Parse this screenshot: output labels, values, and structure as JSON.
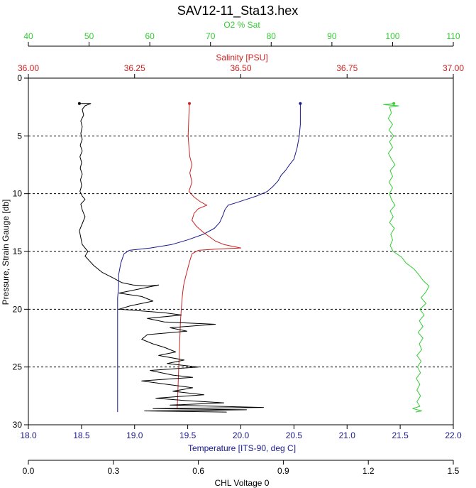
{
  "chart_data": {
    "type": "line",
    "title": "SAV12-11_Sta13.hex",
    "grid": "horizontal dashed",
    "axes": {
      "o2": {
        "label": "O2 % Sat",
        "color": "#33cc33",
        "range": [
          40,
          110
        ],
        "ticks": [
          "40",
          "50",
          "60",
          "70",
          "80",
          "90",
          "100",
          "110"
        ],
        "position": "top"
      },
      "salinity": {
        "label": "Salinity [PSU]",
        "color": "#cc2222",
        "range": [
          36.0,
          37.0
        ],
        "ticks": [
          "36.00",
          "36.25",
          "36.50",
          "36.75",
          "37.00"
        ],
        "position": "top"
      },
      "pressure": {
        "label": "Pressure, Strain Gauge [db]",
        "color": "#000000",
        "range": [
          0,
          30
        ],
        "ticks": [
          "0",
          "5",
          "10",
          "15",
          "20",
          "25",
          "30"
        ],
        "position": "left"
      },
      "temperature": {
        "label": "Temperature [ITS-90, deg C]",
        "color": "#1a1a8c",
        "range": [
          18.0,
          22.0
        ],
        "ticks": [
          "18.0",
          "18.5",
          "19.0",
          "19.5",
          "20.0",
          "20.5",
          "21.0",
          "21.5",
          "22.0"
        ],
        "position": "bottom"
      },
      "chl": {
        "label": "CHL Voltage 0",
        "color": "#000000",
        "range": [
          0.0,
          1.5
        ],
        "ticks": [
          "0.0",
          "0.3",
          "0.6",
          "0.9",
          "1.2",
          "1.5"
        ],
        "position": "bottom"
      }
    },
    "series": [
      {
        "axis": "temperature",
        "color": "#1a1a8c",
        "points": [
          [
            20.56,
            2.2
          ],
          [
            20.56,
            3
          ],
          [
            20.56,
            4
          ],
          [
            20.55,
            5
          ],
          [
            20.53,
            6
          ],
          [
            20.5,
            7
          ],
          [
            20.45,
            7.6
          ],
          [
            20.42,
            8
          ],
          [
            20.38,
            8.4
          ],
          [
            20.35,
            8.9
          ],
          [
            20.3,
            9.4
          ],
          [
            20.25,
            9.8
          ],
          [
            20.15,
            10.2
          ],
          [
            20.05,
            10.5
          ],
          [
            19.95,
            10.8
          ],
          [
            19.88,
            11.0
          ],
          [
            19.85,
            11.4
          ],
          [
            19.83,
            11.9
          ],
          [
            19.8,
            12.5
          ],
          [
            19.75,
            13.0
          ],
          [
            19.65,
            13.5
          ],
          [
            19.5,
            14.0
          ],
          [
            19.35,
            14.4
          ],
          [
            19.15,
            14.7
          ],
          [
            18.95,
            14.9
          ],
          [
            18.9,
            15.2
          ],
          [
            18.87,
            16.0
          ],
          [
            18.85,
            17.0
          ],
          [
            18.85,
            18.0
          ],
          [
            18.84,
            19.0
          ],
          [
            18.84,
            20.0
          ],
          [
            18.84,
            21.0
          ],
          [
            18.84,
            22.0
          ],
          [
            18.84,
            23.0
          ],
          [
            18.84,
            24.0
          ],
          [
            18.84,
            25.0
          ],
          [
            18.84,
            26.0
          ],
          [
            18.84,
            27.0
          ],
          [
            18.84,
            28.0
          ],
          [
            18.84,
            28.9
          ]
        ]
      },
      {
        "axis": "salinity",
        "color": "#cc2222",
        "points": [
          [
            36.379,
            2.2
          ],
          [
            36.378,
            3
          ],
          [
            36.377,
            4
          ],
          [
            36.376,
            5
          ],
          [
            36.378,
            6
          ],
          [
            36.38,
            6.8
          ],
          [
            36.385,
            7.5
          ],
          [
            36.38,
            8.2
          ],
          [
            36.385,
            9
          ],
          [
            36.378,
            9.8
          ],
          [
            36.39,
            10.3
          ],
          [
            36.405,
            10.7
          ],
          [
            36.42,
            11.0
          ],
          [
            36.4,
            11.3
          ],
          [
            36.39,
            11.7
          ],
          [
            36.385,
            12.3
          ],
          [
            36.395,
            12.8
          ],
          [
            36.41,
            13.3
          ],
          [
            36.425,
            13.7
          ],
          [
            36.44,
            14.1
          ],
          [
            36.46,
            14.4
          ],
          [
            36.5,
            14.7
          ],
          [
            36.44,
            14.8
          ],
          [
            36.4,
            14.9
          ],
          [
            36.385,
            15.2
          ],
          [
            36.38,
            15.8
          ],
          [
            36.375,
            16.5
          ],
          [
            36.37,
            17.2
          ],
          [
            36.365,
            18.0
          ],
          [
            36.362,
            19.0
          ],
          [
            36.36,
            20.0
          ],
          [
            36.358,
            21.0
          ],
          [
            36.357,
            22.0
          ],
          [
            36.356,
            23.0
          ],
          [
            36.355,
            24.0
          ],
          [
            36.354,
            25.0
          ],
          [
            36.353,
            26.0
          ],
          [
            36.352,
            27.0
          ],
          [
            36.351,
            28.0
          ],
          [
            36.35,
            28.6
          ]
        ]
      },
      {
        "axis": "o2",
        "color": "#33cc33",
        "points": [
          [
            100.2,
            2.2
          ],
          [
            98.5,
            2.3
          ],
          [
            101.0,
            2.4
          ],
          [
            99.5,
            2.5
          ],
          [
            99.8,
            3.0
          ],
          [
            99.3,
            3.5
          ],
          [
            100.0,
            4.0
          ],
          [
            99.4,
            4.5
          ],
          [
            100.2,
            5.0
          ],
          [
            99.5,
            5.5
          ],
          [
            100.0,
            6.0
          ],
          [
            99.3,
            6.5
          ],
          [
            99.8,
            7.0
          ],
          [
            100.4,
            7.5
          ],
          [
            99.6,
            8.0
          ],
          [
            100.0,
            8.5
          ],
          [
            99.4,
            9.0
          ],
          [
            100.0,
            9.5
          ],
          [
            99.5,
            10.0
          ],
          [
            99.8,
            10.5
          ],
          [
            100.4,
            11.0
          ],
          [
            99.6,
            11.5
          ],
          [
            100.1,
            12.0
          ],
          [
            99.5,
            12.5
          ],
          [
            100.3,
            13.0
          ],
          [
            99.7,
            13.5
          ],
          [
            100.0,
            14.0
          ],
          [
            99.6,
            14.5
          ],
          [
            100.1,
            15.0
          ],
          [
            101.5,
            15.5
          ],
          [
            102.2,
            16.0
          ],
          [
            103.5,
            16.5
          ],
          [
            104.3,
            17.0
          ],
          [
            105.0,
            17.5
          ],
          [
            106.0,
            18.0
          ],
          [
            105.5,
            18.5
          ],
          [
            104.7,
            19.0
          ],
          [
            105.5,
            19.5
          ],
          [
            104.5,
            20.0
          ],
          [
            105.2,
            20.5
          ],
          [
            104.4,
            21.0
          ],
          [
            105.0,
            21.5
          ],
          [
            104.2,
            22.0
          ],
          [
            105.0,
            22.5
          ],
          [
            104.4,
            23.0
          ],
          [
            104.8,
            23.5
          ],
          [
            104.0,
            24.0
          ],
          [
            104.7,
            24.5
          ],
          [
            104.1,
            25.0
          ],
          [
            104.6,
            25.5
          ],
          [
            103.9,
            26.0
          ],
          [
            104.5,
            26.5
          ],
          [
            104.0,
            27.0
          ],
          [
            104.6,
            27.5
          ],
          [
            104.0,
            28.0
          ],
          [
            104.5,
            28.4
          ],
          [
            103.3,
            28.6
          ],
          [
            104.8,
            28.8
          ],
          [
            103.8,
            28.9
          ]
        ]
      },
      {
        "axis": "chl",
        "color": "#000000",
        "points": [
          [
            0.18,
            2.2
          ],
          [
            0.22,
            2.2
          ],
          [
            0.2,
            2.4
          ],
          [
            0.19,
            2.7
          ],
          [
            0.195,
            3.2
          ],
          [
            0.185,
            3.7
          ],
          [
            0.19,
            4.2
          ],
          [
            0.185,
            4.8
          ],
          [
            0.19,
            5.3
          ],
          [
            0.183,
            5.8
          ],
          [
            0.19,
            6.3
          ],
          [
            0.182,
            6.8
          ],
          [
            0.188,
            7.3
          ],
          [
            0.183,
            7.8
          ],
          [
            0.19,
            8.3
          ],
          [
            0.184,
            8.8
          ],
          [
            0.188,
            9.3
          ],
          [
            0.182,
            9.8
          ],
          [
            0.19,
            10.2
          ],
          [
            0.2,
            10.5
          ],
          [
            0.185,
            10.9
          ],
          [
            0.19,
            11.4
          ],
          [
            0.2,
            12.0
          ],
          [
            0.19,
            12.6
          ],
          [
            0.18,
            13.2
          ],
          [
            0.185,
            13.8
          ],
          [
            0.19,
            14.4
          ],
          [
            0.21,
            15.0
          ],
          [
            0.2,
            15.4
          ],
          [
            0.23,
            16.2
          ],
          [
            0.26,
            16.8
          ],
          [
            0.3,
            17.3
          ],
          [
            0.33,
            17.7
          ],
          [
            0.37,
            17.9
          ],
          [
            0.42,
            18.0
          ],
          [
            0.46,
            17.9
          ],
          [
            0.38,
            18.3
          ],
          [
            0.32,
            18.6
          ],
          [
            0.4,
            18.9
          ],
          [
            0.44,
            19.3
          ],
          [
            0.36,
            19.7
          ],
          [
            0.32,
            20.0
          ],
          [
            0.48,
            20.3
          ],
          [
            0.54,
            20.5
          ],
          [
            0.42,
            20.8
          ],
          [
            0.48,
            21.1
          ],
          [
            0.66,
            21.3
          ],
          [
            0.5,
            21.6
          ],
          [
            0.56,
            21.9
          ],
          [
            0.42,
            22.2
          ],
          [
            0.4,
            22.6
          ],
          [
            0.44,
            23.0
          ],
          [
            0.48,
            23.3
          ],
          [
            0.52,
            23.7
          ],
          [
            0.46,
            24.0
          ],
          [
            0.55,
            24.4
          ],
          [
            0.49,
            24.7
          ],
          [
            0.6,
            25.0
          ],
          [
            0.43,
            25.3
          ],
          [
            0.51,
            25.7
          ],
          [
            0.58,
            25.9
          ],
          [
            0.4,
            26.2
          ],
          [
            0.49,
            26.5
          ],
          [
            0.58,
            26.8
          ],
          [
            0.51,
            27.1
          ],
          [
            0.62,
            27.4
          ],
          [
            0.45,
            27.7
          ],
          [
            0.55,
            27.9
          ],
          [
            0.69,
            28.1
          ],
          [
            0.5,
            28.3
          ],
          [
            0.83,
            28.5
          ],
          [
            0.44,
            28.6
          ],
          [
            0.77,
            28.7
          ],
          [
            0.41,
            28.8
          ],
          [
            0.7,
            28.9
          ]
        ]
      }
    ]
  }
}
